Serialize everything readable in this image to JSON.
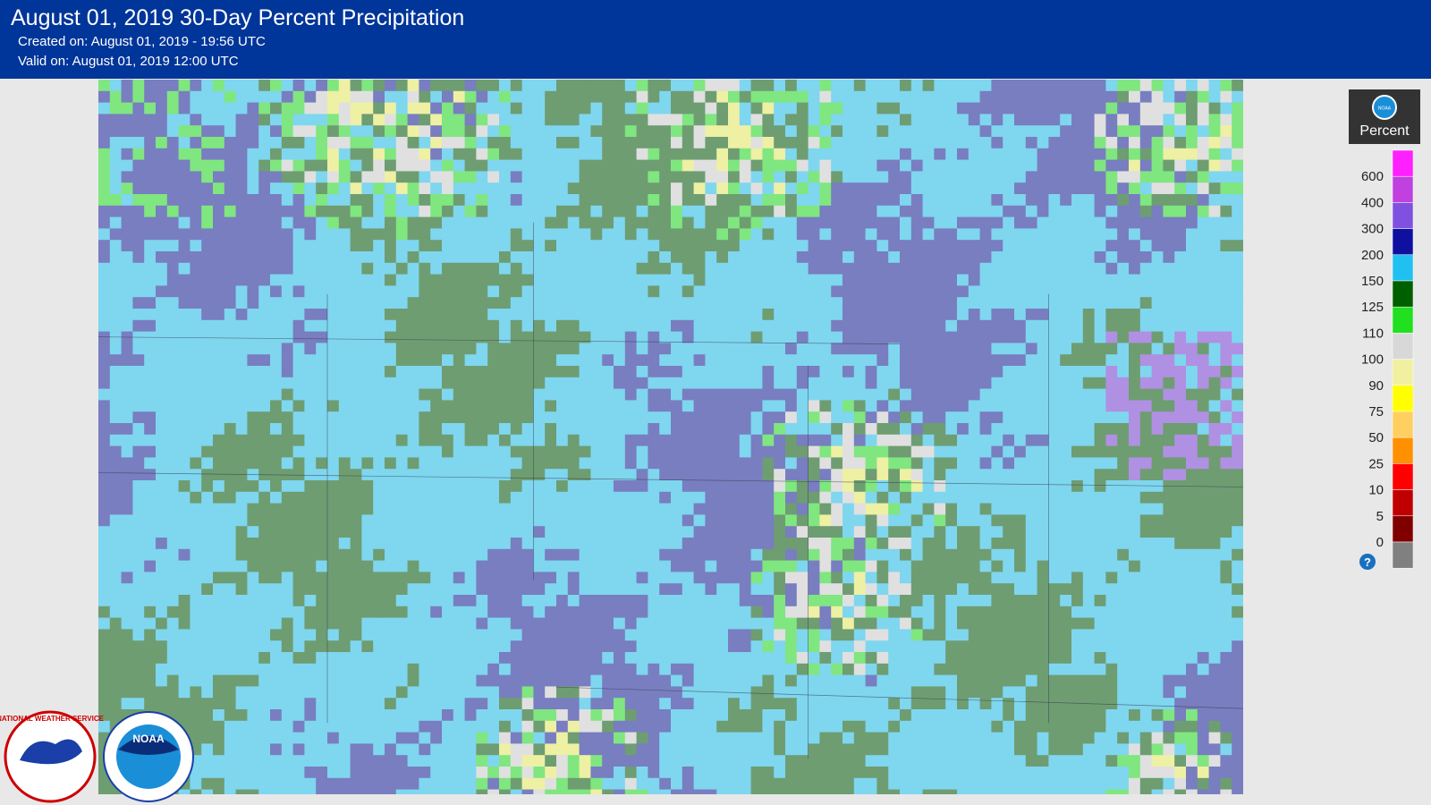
{
  "header": {
    "title": "August 01, 2019 30-Day Percent Precipitation",
    "created": "Created on: August 01, 2019 - 19:56 UTC",
    "valid": "Valid on: August 01, 2019 12:00 UTC"
  },
  "legend": {
    "title": "Percent",
    "logo": "NOAA",
    "help": "?",
    "labels": [
      "600",
      "400",
      "300",
      "200",
      "150",
      "125",
      "110",
      "100",
      "90",
      "75",
      "50",
      "25",
      "10",
      "5",
      "0"
    ],
    "colors": [
      "#ff20ff",
      "#c040e0",
      "#8050e0",
      "#1010a0",
      "#20c0f0",
      "#006000",
      "#20e020",
      "#d8d8d8",
      "#f0f0a0",
      "#ffff00",
      "#ffd060",
      "#ff9000",
      "#ff0000",
      "#c00000",
      "#800000",
      "#808080"
    ]
  },
  "logos": {
    "nws": "NATIONAL WEATHER SERVICE",
    "noaa": "NOAA"
  }
}
